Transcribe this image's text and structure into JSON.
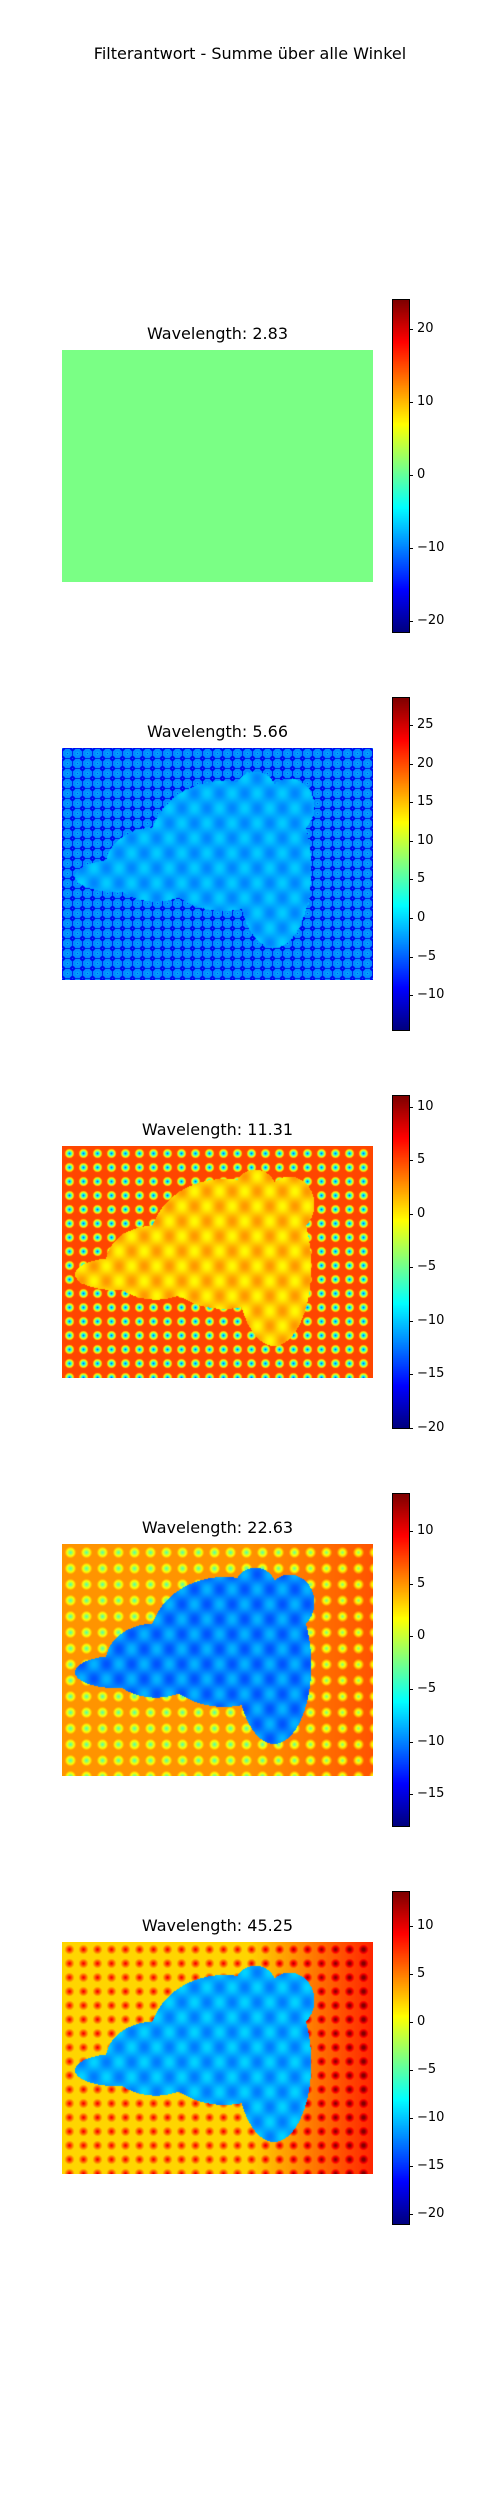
{
  "figure": {
    "title": "Filterantwort - Summe über alle Winkel"
  },
  "colormap": "jet",
  "chart_data": [
    {
      "type": "heatmap",
      "title": "Wavelength: 2.83",
      "pattern": "flat",
      "value_range": [
        -21.5,
        24
      ],
      "colorbar_ticks": [
        20,
        10,
        0,
        -10,
        -20
      ],
      "colorbar_labels": [
        "20",
        "10",
        "0",
        "−10",
        "−20"
      ],
      "base_value": 1,
      "dots_value": null,
      "dog_value": 1
    },
    {
      "type": "heatmap",
      "title": "Wavelength: 5.66",
      "pattern": "ring-lattice",
      "value_range": [
        -14.5,
        28.5
      ],
      "colorbar_ticks": [
        25,
        20,
        15,
        10,
        5,
        0,
        -5,
        -10
      ],
      "colorbar_labels": [
        "25",
        "20",
        "15",
        "10",
        "5",
        "0",
        "−5",
        "−10"
      ],
      "base_value": -2,
      "dots_value": -11,
      "dog_value": -2
    },
    {
      "type": "heatmap",
      "title": "Wavelength: 11.31",
      "pattern": "dot-lattice",
      "value_range": [
        -20,
        11
      ],
      "colorbar_ticks": [
        10,
        5,
        0,
        -5,
        -10,
        -15,
        -20
      ],
      "colorbar_labels": [
        "10",
        "5",
        "0",
        "−5",
        "−10",
        "−15",
        "−20"
      ],
      "base_value": 5,
      "dots_value": -14,
      "dog_value": 1
    },
    {
      "type": "heatmap",
      "title": "Wavelength: 22.63",
      "pattern": "dot-lattice",
      "value_range": [
        -18,
        13.5
      ],
      "colorbar_ticks": [
        10,
        5,
        0,
        -5,
        -10,
        -15
      ],
      "colorbar_labels": [
        "10",
        "5",
        "0",
        "−5",
        "−10",
        "−15"
      ],
      "base_value": 5,
      "dots_value": -4,
      "dog_value": -10
    },
    {
      "type": "heatmap",
      "title": "Wavelength: 45.25",
      "pattern": "dot-lattice",
      "value_range": [
        -21,
        13.5
      ],
      "colorbar_ticks": [
        10,
        5,
        0,
        -5,
        -10,
        -15,
        -20
      ],
      "colorbar_labels": [
        "10",
        "5",
        "0",
        "−5",
        "−10",
        "−15",
        "−20"
      ],
      "base_value": 2,
      "dots_value": 10,
      "dog_value": -11
    }
  ]
}
